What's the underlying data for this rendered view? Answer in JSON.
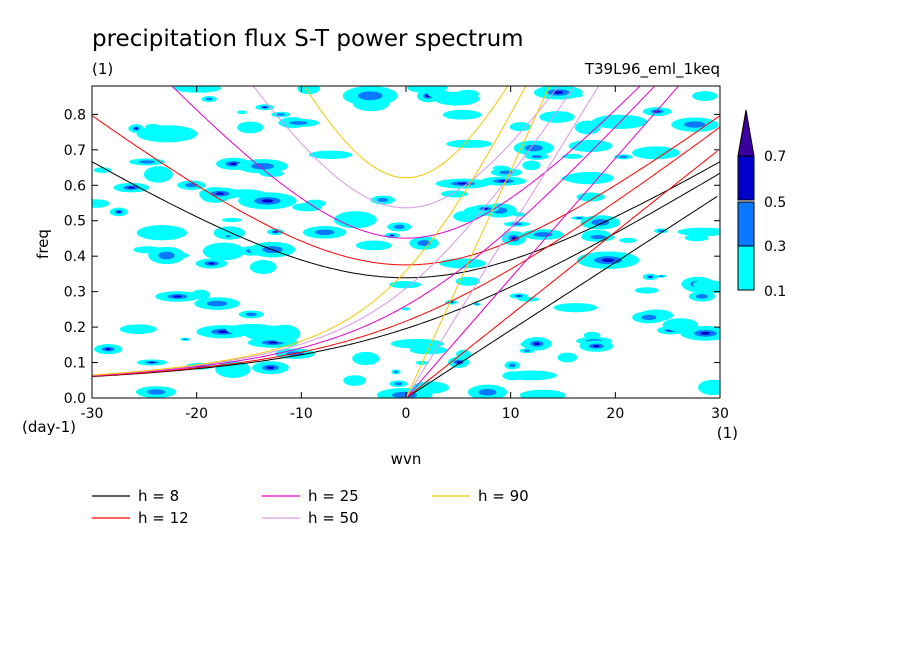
{
  "chart_data": {
    "type": "heatmap",
    "title": "precipitation flux S-T power spectrum",
    "subtitle_left": "(1)",
    "subtitle_right": "T39L96_eml_1keq",
    "xlabel": "wvn",
    "ylabel": "freq",
    "x_unit": "(1)",
    "y_unit": "(day-1)",
    "xlim": [
      -30,
      30
    ],
    "ylim": [
      0,
      0.88
    ],
    "x_ticks": [
      "-30",
      "-20",
      "-10",
      "0",
      "10",
      "20",
      "30"
    ],
    "y_ticks": [
      "0.0",
      "0.1",
      "0.2",
      "0.3",
      "0.4",
      "0.5",
      "0.6",
      "0.7",
      "0.8"
    ],
    "x_tick_values": [
      -30,
      -20,
      -10,
      0,
      10,
      20,
      30
    ],
    "y_tick_values": [
      0,
      0.1,
      0.2,
      0.3,
      0.4,
      0.5,
      0.6,
      0.7,
      0.8
    ],
    "colorbar": {
      "levels": [
        "0.1",
        "0.3",
        "0.5",
        "0.7"
      ],
      "level_values": [
        0.1,
        0.3,
        0.5,
        0.7
      ],
      "colors": [
        "#00ffff",
        "#0a78ff",
        "#0000c8",
        "#3c00a0"
      ]
    },
    "dispersion_curves": [
      {
        "label": "h =  8",
        "h": 8,
        "color": "#000000"
      },
      {
        "label": "h = 12",
        "h": 12,
        "color": "#ff0000"
      },
      {
        "label": "h = 25",
        "h": 25,
        "color": "#e600c8"
      },
      {
        "label": "h = 50",
        "h": 50,
        "color": "#dc96e6"
      },
      {
        "label": "h = 90",
        "h": 90,
        "color": "#f5c800"
      }
    ]
  }
}
